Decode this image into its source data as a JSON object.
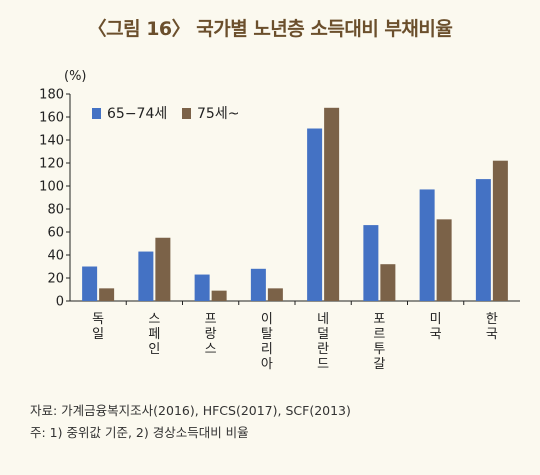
{
  "title": "〈그림 16〉 국가별 노년층 소득대비 부채비율",
  "chart_data": {
    "type": "bar",
    "unit_label": "(%)",
    "categories": [
      "독일",
      "스페인",
      "프랑스",
      "이탈리아",
      "네덜란드",
      "포르투갈",
      "미국",
      "한국"
    ],
    "series": [
      {
        "name": "65−74세",
        "color": "#4472c4",
        "values": [
          30,
          43,
          23,
          28,
          150,
          66,
          97,
          106
        ]
      },
      {
        "name": "75세~",
        "color": "#7b6248",
        "values": [
          11,
          55,
          9,
          11,
          168,
          32,
          71,
          122
        ]
      }
    ],
    "ylim": [
      0,
      180
    ],
    "yticks": [
      "0",
      "20",
      "40",
      "60",
      "80",
      "100",
      "120",
      "140",
      "160",
      "180"
    ],
    "grid": false,
    "legend_position": "top-left"
  },
  "notes": {
    "source": "자료: 가계금융복지조사(2016), HFCS(2017), SCF(2013)",
    "footnote": "주: 1) 중위값 기준, 2) 경상소득대비 비율"
  }
}
